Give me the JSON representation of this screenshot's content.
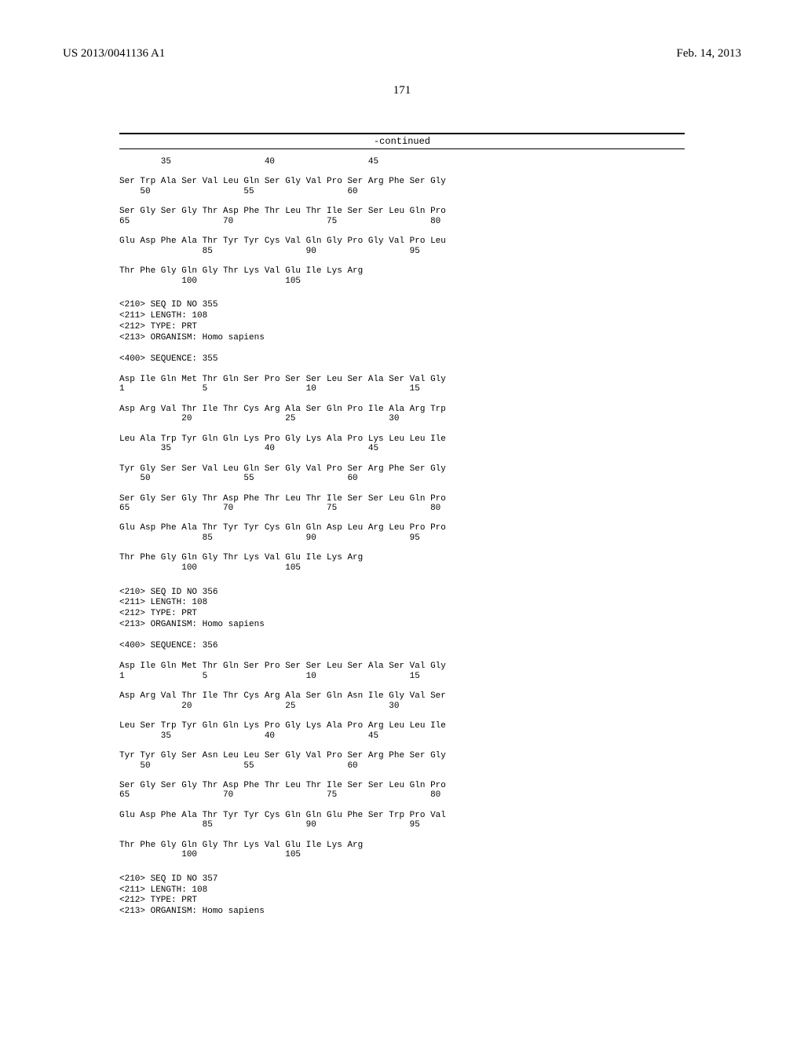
{
  "header": {
    "pub_number": "US 2013/0041136 A1",
    "pub_date": "Feb. 14, 2013"
  },
  "page_number": "171",
  "continued_label": "-continued",
  "top_sequence": {
    "rows": [
      "        35                  40                  45",
      "",
      "Ser Trp Ala Ser Val Leu Gln Ser Gly Val Pro Ser Arg Phe Ser Gly",
      "    50                  55                  60",
      "",
      "Ser Gly Ser Gly Thr Asp Phe Thr Leu Thr Ile Ser Ser Leu Gln Pro",
      "65                  70                  75                  80",
      "",
      "Glu Asp Phe Ala Thr Tyr Tyr Cys Val Gln Gly Pro Gly Val Pro Leu",
      "                85                  90                  95",
      "",
      "Thr Phe Gly Gln Gly Thr Lys Val Glu Ile Lys Arg",
      "            100                 105"
    ]
  },
  "seq355": {
    "meta": [
      "<210> SEQ ID NO 355",
      "<211> LENGTH: 108",
      "<212> TYPE: PRT",
      "<213> ORGANISM: Homo sapiens",
      "",
      "<400> SEQUENCE: 355"
    ],
    "rows": [
      "Asp Ile Gln Met Thr Gln Ser Pro Ser Ser Leu Ser Ala Ser Val Gly",
      "1               5                   10                  15",
      "",
      "Asp Arg Val Thr Ile Thr Cys Arg Ala Ser Gln Pro Ile Ala Arg Trp",
      "            20                  25                  30",
      "",
      "Leu Ala Trp Tyr Gln Gln Lys Pro Gly Lys Ala Pro Lys Leu Leu Ile",
      "        35                  40                  45",
      "",
      "Tyr Gly Ser Ser Val Leu Gln Ser Gly Val Pro Ser Arg Phe Ser Gly",
      "    50                  55                  60",
      "",
      "Ser Gly Ser Gly Thr Asp Phe Thr Leu Thr Ile Ser Ser Leu Gln Pro",
      "65                  70                  75                  80",
      "",
      "Glu Asp Phe Ala Thr Tyr Tyr Cys Gln Gln Asp Leu Arg Leu Pro Pro",
      "                85                  90                  95",
      "",
      "Thr Phe Gly Gln Gly Thr Lys Val Glu Ile Lys Arg",
      "            100                 105"
    ]
  },
  "seq356": {
    "meta": [
      "<210> SEQ ID NO 356",
      "<211> LENGTH: 108",
      "<212> TYPE: PRT",
      "<213> ORGANISM: Homo sapiens",
      "",
      "<400> SEQUENCE: 356"
    ],
    "rows": [
      "Asp Ile Gln Met Thr Gln Ser Pro Ser Ser Leu Ser Ala Ser Val Gly",
      "1               5                   10                  15",
      "",
      "Asp Arg Val Thr Ile Thr Cys Arg Ala Ser Gln Asn Ile Gly Val Ser",
      "            20                  25                  30",
      "",
      "Leu Ser Trp Tyr Gln Gln Lys Pro Gly Lys Ala Pro Arg Leu Leu Ile",
      "        35                  40                  45",
      "",
      "Tyr Tyr Gly Ser Asn Leu Leu Ser Gly Val Pro Ser Arg Phe Ser Gly",
      "    50                  55                  60",
      "",
      "Ser Gly Ser Gly Thr Asp Phe Thr Leu Thr Ile Ser Ser Leu Gln Pro",
      "65                  70                  75                  80",
      "",
      "Glu Asp Phe Ala Thr Tyr Tyr Cys Gln Gln Glu Phe Ser Trp Pro Val",
      "                85                  90                  95",
      "",
      "Thr Phe Gly Gln Gly Thr Lys Val Glu Ile Lys Arg",
      "            100                 105"
    ]
  },
  "seq357": {
    "meta": [
      "<210> SEQ ID NO 357",
      "<211> LENGTH: 108",
      "<212> TYPE: PRT",
      "<213> ORGANISM: Homo sapiens"
    ]
  }
}
